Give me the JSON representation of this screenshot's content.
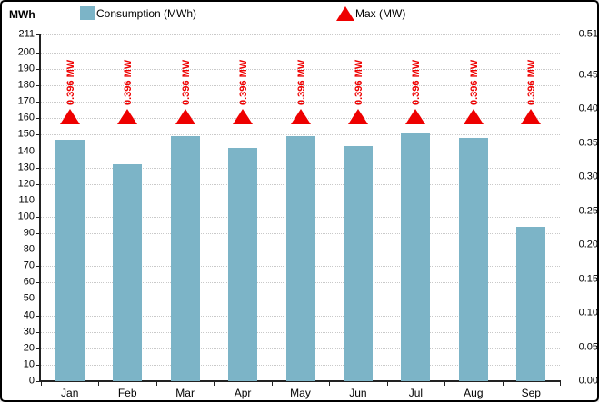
{
  "header": {
    "axis_unit_label": "MWh",
    "legend": {
      "consumption_label": "Consumption (MWh)",
      "max_label": "Max (MW)"
    }
  },
  "colors": {
    "bar": "#7CB4C7",
    "max_marker": "#EE0000",
    "grid": "#C9C9C9",
    "axis": "#222222",
    "background": "#FFFFFF",
    "border": "#000000"
  },
  "chart_data": {
    "type": "bar",
    "title": "",
    "categories": [
      "Jan",
      "Feb",
      "Mar",
      "Apr",
      "May",
      "Jun",
      "Jul",
      "Aug",
      "Sep"
    ],
    "series": [
      {
        "name": "Consumption (MWh)",
        "type": "bar",
        "axis": "left",
        "color": "#7CB4C7",
        "values": [
          147,
          132,
          149,
          142,
          149,
          143,
          151,
          148,
          94
        ]
      },
      {
        "name": "Max (MW)",
        "type": "scatter",
        "marker": "triangle",
        "axis": "right",
        "color": "#EE0000",
        "values": [
          0.396,
          0.396,
          0.396,
          0.396,
          0.396,
          0.396,
          0.396,
          0.396,
          0.396
        ],
        "point_labels": [
          "0.396 MW",
          "0.396 MW",
          "0.396 MW",
          "0.396 MW",
          "0.396 MW",
          "0.396 MW",
          "0.396 MW",
          "0.396 MW",
          "0.396 MW"
        ]
      }
    ],
    "left_axis": {
      "title": "MWh",
      "min": 0,
      "max": 211,
      "tick_values": [
        0,
        10,
        20,
        30,
        40,
        50,
        60,
        70,
        80,
        90,
        100,
        110,
        120,
        130,
        140,
        150,
        160,
        170,
        180,
        190,
        200,
        211
      ],
      "tick_labels": [
        "0",
        "10",
        "20",
        "30",
        "40",
        "50",
        "60",
        "70",
        "80",
        "90",
        "100",
        "110",
        "120",
        "130",
        "140",
        "150",
        "160",
        "170",
        "180",
        "190",
        "200",
        "211"
      ]
    },
    "right_axis": {
      "title": "",
      "min": 0,
      "max": 0.51,
      "tick_values": [
        0,
        0.05,
        0.1,
        0.15,
        0.2,
        0.25,
        0.3,
        0.35,
        0.4,
        0.45,
        0.51
      ],
      "tick_labels": [
        "0.00",
        "0.05",
        "0.10",
        "0.15",
        "0.20",
        "0.25",
        "0.30",
        "0.35",
        "0.40",
        "0.45",
        "0.51"
      ]
    },
    "grid": "horizontal-dotted",
    "legend_position": "top"
  }
}
